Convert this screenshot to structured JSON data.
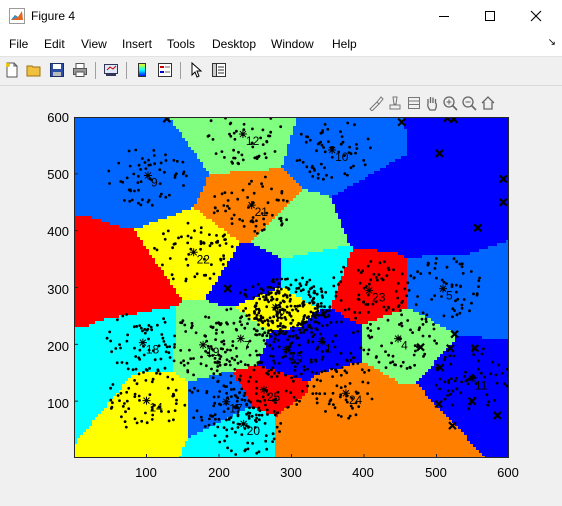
{
  "window": {
    "title": "Figure 4"
  },
  "menu": [
    "File",
    "Edit",
    "View",
    "Insert",
    "Tools",
    "Desktop",
    "Window",
    "Help"
  ],
  "toolbar": [
    "new-figure",
    "open-file",
    "save",
    "print",
    "link-plot",
    "insert-colorbar",
    "insert-legend",
    "edit-plot",
    "property-inspector"
  ],
  "axes_toolbar": [
    "brush",
    "data-tips",
    "restore-view",
    "pan",
    "zoom-in",
    "zoom-out",
    "home"
  ],
  "chart_data": {
    "type": "scatter",
    "description_type": "voronoi-with-scatter",
    "xlim": [
      0,
      600
    ],
    "ylim": [
      0,
      600
    ],
    "xticks": [
      "100",
      "200",
      "300",
      "400",
      "500",
      "600"
    ],
    "yticks": [
      "100",
      "200",
      "300",
      "400",
      "500",
      "600"
    ],
    "colors": {
      "blue": "#0000ff",
      "midblue": "#0066ff",
      "cyan": "#00ffff",
      "green": "#80ff80",
      "yellow": "#ffff00",
      "orange": "#ff8000",
      "red": "#ff0000"
    },
    "centroid_marker": "*",
    "outlier_marker": "x",
    "points_visible": "dense black dots",
    "centroids": [
      {
        "label": "1",
        "x": 342,
        "y": 205
      },
      {
        "label": "2",
        "x": 278,
        "y": 265
      },
      {
        "label": "4",
        "x": 447,
        "y": 210
      },
      {
        "label": "5",
        "x": 509,
        "y": 298
      },
      {
        "label": "7",
        "x": 230,
        "y": 210
      },
      {
        "label": "9",
        "x": 102,
        "y": 497
      },
      {
        "label": "10",
        "x": 356,
        "y": 542
      },
      {
        "label": "11",
        "x": 549,
        "y": 140
      },
      {
        "label": "12",
        "x": 233,
        "y": 570
      },
      {
        "label": "14",
        "x": 100,
        "y": 101
      },
      {
        "label": "15",
        "x": 293,
        "y": 191
      },
      {
        "label": "17",
        "x": 210,
        "y": 99
      },
      {
        "label": "18",
        "x": 95,
        "y": 203
      },
      {
        "label": "19",
        "x": 178,
        "y": 199
      },
      {
        "label": "20",
        "x": 234,
        "y": 60
      },
      {
        "label": "21",
        "x": 245,
        "y": 445
      },
      {
        "label": "22",
        "x": 165,
        "y": 362
      },
      {
        "label": "23",
        "x": 407,
        "y": 295
      },
      {
        "label": "24",
        "x": 375,
        "y": 114
      },
      {
        "label": "25",
        "x": 262,
        "y": 120
      }
    ],
    "outliers": [
      [
        128,
        597
      ],
      [
        452,
        591
      ],
      [
        515,
        598
      ],
      [
        524,
        596
      ],
      [
        504,
        536
      ],
      [
        592,
        491
      ],
      [
        592,
        450
      ],
      [
        557,
        405
      ],
      [
        212,
        298
      ],
      [
        525,
        218
      ],
      [
        553,
        193
      ],
      [
        478,
        195
      ],
      [
        519,
        193
      ],
      [
        503,
        95
      ],
      [
        549,
        100
      ],
      [
        584,
        75
      ],
      [
        505,
        159
      ],
      [
        522,
        57
      ]
    ]
  }
}
